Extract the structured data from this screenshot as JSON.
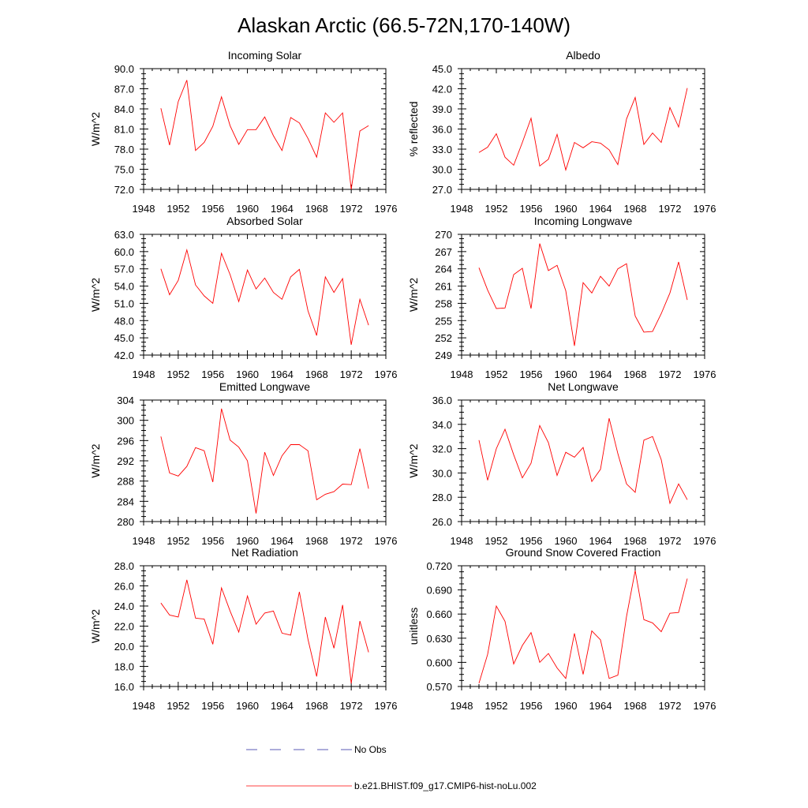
{
  "figure": {
    "title": "Alaskan Arctic (66.5-72N,170-140W)",
    "colors": {
      "model": "#ff0000",
      "obs": "#5a5ab4",
      "axis": "#000000"
    }
  },
  "legend": {
    "obs_label": "No Obs",
    "model_label": "b.e21.BHIST.f09_g17.CMIP6-hist-noLu.002"
  },
  "chart_data": [
    {
      "type": "line",
      "title": "Incoming Solar",
      "ylabel": "W/m^2",
      "xlabel": "",
      "xlim": [
        1948,
        1976
      ],
      "xticks": [
        "1948",
        "1952",
        "1956",
        "1960",
        "1964",
        "1968",
        "1972",
        "1976"
      ],
      "ylim": [
        72.0,
        90.0
      ],
      "yticks": [
        "72.0",
        "75.0",
        "78.0",
        "81.0",
        "84.0",
        "87.0",
        "90.0"
      ],
      "x": [
        1950,
        1951,
        1952,
        1953,
        1954,
        1955,
        1956,
        1957,
        1958,
        1959,
        1960,
        1961,
        1962,
        1963,
        1964,
        1965,
        1966,
        1967,
        1968,
        1969,
        1970,
        1971,
        1972,
        1973,
        1974
      ],
      "series": [
        {
          "name": "b.e21.BHIST.f09_g17.CMIP6-hist-noLu.002",
          "values": [
            84.1,
            78.6,
            85.1,
            88.3,
            77.8,
            79.0,
            81.4,
            85.8,
            81.5,
            78.7,
            80.9,
            80.9,
            82.8,
            80.0,
            77.8,
            82.7,
            81.9,
            79.6,
            76.8,
            83.4,
            82.0,
            83.4,
            72.0,
            80.7,
            81.5
          ]
        }
      ]
    },
    {
      "type": "line",
      "title": "Albedo",
      "ylabel": "% reflected",
      "xlabel": "",
      "xlim": [
        1948,
        1976
      ],
      "xticks": [
        "1948",
        "1952",
        "1956",
        "1960",
        "1964",
        "1968",
        "1972",
        "1976"
      ],
      "ylim": [
        27.0,
        45.0
      ],
      "yticks": [
        "27.0",
        "30.0",
        "33.0",
        "36.0",
        "39.0",
        "42.0",
        "45.0"
      ],
      "x": [
        1950,
        1951,
        1952,
        1953,
        1954,
        1955,
        1956,
        1957,
        1958,
        1959,
        1960,
        1961,
        1962,
        1963,
        1964,
        1965,
        1966,
        1967,
        1968,
        1969,
        1970,
        1971,
        1972,
        1973,
        1974
      ],
      "series": [
        {
          "name": "b.e21.BHIST.f09_g17.CMIP6-hist-noLu.002",
          "values": [
            32.5,
            33.3,
            35.3,
            31.8,
            30.6,
            34.0,
            37.6,
            30.5,
            31.5,
            35.2,
            29.9,
            34.0,
            33.2,
            34.1,
            33.9,
            32.9,
            30.7,
            37.5,
            40.7,
            33.7,
            35.4,
            34.0,
            39.2,
            36.3,
            42.1
          ]
        }
      ]
    },
    {
      "type": "line",
      "title": "Absorbed Solar",
      "ylabel": "W/m^2",
      "xlabel": "",
      "xlim": [
        1948,
        1976
      ],
      "xticks": [
        "1948",
        "1952",
        "1956",
        "1960",
        "1964",
        "1968",
        "1972",
        "1976"
      ],
      "ylim": [
        42.0,
        63.0
      ],
      "yticks": [
        "42.0",
        "45.0",
        "48.0",
        "51.0",
        "54.0",
        "57.0",
        "60.0",
        "63.0"
      ],
      "x": [
        1950,
        1951,
        1952,
        1953,
        1954,
        1955,
        1956,
        1957,
        1958,
        1959,
        1960,
        1961,
        1962,
        1963,
        1964,
        1965,
        1966,
        1967,
        1968,
        1969,
        1970,
        1971,
        1972,
        1973,
        1974
      ],
      "series": [
        {
          "name": "b.e21.BHIST.f09_g17.CMIP6-hist-noLu.002",
          "values": [
            57.0,
            52.5,
            55.0,
            60.3,
            54.2,
            52.3,
            51.0,
            59.7,
            56.0,
            51.3,
            56.8,
            53.5,
            55.4,
            52.9,
            51.7,
            55.6,
            56.9,
            49.7,
            45.4,
            55.6,
            52.9,
            55.3,
            43.8,
            51.7,
            47.2
          ]
        }
      ]
    },
    {
      "type": "line",
      "title": "Incoming Longwave",
      "ylabel": "W/m^2",
      "xlabel": "",
      "xlim": [
        1948,
        1976
      ],
      "xticks": [
        "1948",
        "1952",
        "1956",
        "1960",
        "1964",
        "1968",
        "1972",
        "1976"
      ],
      "ylim": [
        249,
        270
      ],
      "yticks": [
        "249",
        "252",
        "255",
        "258",
        "261",
        "264",
        "267",
        "270"
      ],
      "x": [
        1950,
        1951,
        1952,
        1953,
        1954,
        1955,
        1956,
        1957,
        1958,
        1959,
        1960,
        1961,
        1962,
        1963,
        1964,
        1965,
        1966,
        1967,
        1968,
        1969,
        1970,
        1971,
        1972,
        1973,
        1974
      ],
      "series": [
        {
          "name": "b.e21.BHIST.f09_g17.CMIP6-hist-noLu.002",
          "values": [
            264.2,
            260.3,
            257.1,
            257.2,
            263.0,
            264.1,
            257.1,
            268.4,
            263.7,
            264.6,
            260.2,
            250.6,
            261.6,
            259.8,
            262.7,
            261.0,
            264.0,
            264.9,
            255.8,
            253.0,
            253.1,
            256.2,
            259.8,
            265.2,
            258.6
          ]
        }
      ]
    },
    {
      "type": "line",
      "title": "Emitted Longwave",
      "ylabel": "W/m^2",
      "xlabel": "",
      "xlim": [
        1948,
        1976
      ],
      "xticks": [
        "1948",
        "1952",
        "1956",
        "1960",
        "1964",
        "1968",
        "1972",
        "1976"
      ],
      "ylim": [
        280,
        304
      ],
      "yticks": [
        "280",
        "284",
        "288",
        "292",
        "296",
        "300",
        "304"
      ],
      "x": [
        1950,
        1951,
        1952,
        1953,
        1954,
        1955,
        1956,
        1957,
        1958,
        1959,
        1960,
        1961,
        1962,
        1963,
        1964,
        1965,
        1966,
        1967,
        1968,
        1969,
        1970,
        1971,
        1972,
        1973,
        1974
      ],
      "series": [
        {
          "name": "b.e21.BHIST.f09_g17.CMIP6-hist-noLu.002",
          "values": [
            296.8,
            289.6,
            289.0,
            290.9,
            294.6,
            294.0,
            287.8,
            302.3,
            296.1,
            294.7,
            292.0,
            281.6,
            293.7,
            289.1,
            293.0,
            295.2,
            295.2,
            294.0,
            284.3,
            285.4,
            285.9,
            287.4,
            287.3,
            294.4,
            286.5
          ]
        }
      ]
    },
    {
      "type": "line",
      "title": "Net Longwave",
      "ylabel": "W/m^2",
      "xlabel": "",
      "xlim": [
        1948,
        1976
      ],
      "xticks": [
        "1948",
        "1952",
        "1956",
        "1960",
        "1964",
        "1968",
        "1972",
        "1976"
      ],
      "ylim": [
        26.0,
        36.0
      ],
      "yticks": [
        "26.0",
        "28.0",
        "30.0",
        "32.0",
        "34.0",
        "36.0"
      ],
      "x": [
        1950,
        1951,
        1952,
        1953,
        1954,
        1955,
        1956,
        1957,
        1958,
        1959,
        1960,
        1961,
        1962,
        1963,
        1964,
        1965,
        1966,
        1967,
        1968,
        1969,
        1970,
        1971,
        1972,
        1973,
        1974
      ],
      "series": [
        {
          "name": "b.e21.BHIST.f09_g17.CMIP6-hist-noLu.002",
          "values": [
            32.7,
            29.4,
            32.0,
            33.6,
            31.5,
            29.6,
            30.8,
            33.9,
            32.5,
            29.8,
            31.7,
            31.3,
            32.1,
            29.3,
            30.3,
            34.5,
            31.6,
            29.1,
            28.4,
            32.7,
            33.0,
            31.1,
            27.5,
            29.1,
            27.8
          ]
        }
      ]
    },
    {
      "type": "line",
      "title": "Net Radiation",
      "ylabel": "W/m^2",
      "xlabel": "",
      "xlim": [
        1948,
        1976
      ],
      "xticks": [
        "1948",
        "1952",
        "1956",
        "1960",
        "1964",
        "1968",
        "1972",
        "1976"
      ],
      "ylim": [
        16.0,
        28.0
      ],
      "yticks": [
        "16.0",
        "18.0",
        "20.0",
        "22.0",
        "24.0",
        "26.0",
        "28.0"
      ],
      "x": [
        1950,
        1951,
        1952,
        1953,
        1954,
        1955,
        1956,
        1957,
        1958,
        1959,
        1960,
        1961,
        1962,
        1963,
        1964,
        1965,
        1966,
        1967,
        1968,
        1969,
        1970,
        1971,
        1972,
        1973,
        1974
      ],
      "series": [
        {
          "name": "b.e21.BHIST.f09_g17.CMIP6-hist-noLu.002",
          "values": [
            24.3,
            23.1,
            22.9,
            26.6,
            22.8,
            22.7,
            20.2,
            25.8,
            23.5,
            21.4,
            25.0,
            22.2,
            23.3,
            23.5,
            21.3,
            21.1,
            25.4,
            20.7,
            17.0,
            22.9,
            19.8,
            24.1,
            16.3,
            22.5,
            19.4
          ]
        }
      ]
    },
    {
      "type": "line",
      "title": "Ground Snow Covered Fraction",
      "ylabel": "unitless",
      "xlabel": "",
      "xlim": [
        1948,
        1976
      ],
      "xticks": [
        "1948",
        "1952",
        "1956",
        "1960",
        "1964",
        "1968",
        "1972",
        "1976"
      ],
      "ylim": [
        0.57,
        0.72
      ],
      "yticks": [
        "0.570",
        "0.600",
        "0.630",
        "0.660",
        "0.690",
        "0.720"
      ],
      "x": [
        1950,
        1951,
        1952,
        1953,
        1954,
        1955,
        1956,
        1957,
        1958,
        1959,
        1960,
        1961,
        1962,
        1963,
        1964,
        1965,
        1966,
        1967,
        1968,
        1969,
        1970,
        1971,
        1972,
        1973,
        1974
      ],
      "series": [
        {
          "name": "b.e21.BHIST.f09_g17.CMIP6-hist-noLu.002",
          "values": [
            0.574,
            0.61,
            0.67,
            0.651,
            0.598,
            0.621,
            0.637,
            0.6,
            0.611,
            0.593,
            0.58,
            0.636,
            0.585,
            0.639,
            0.628,
            0.58,
            0.584,
            0.657,
            0.714,
            0.653,
            0.649,
            0.638,
            0.661,
            0.662,
            0.704
          ]
        }
      ]
    }
  ]
}
